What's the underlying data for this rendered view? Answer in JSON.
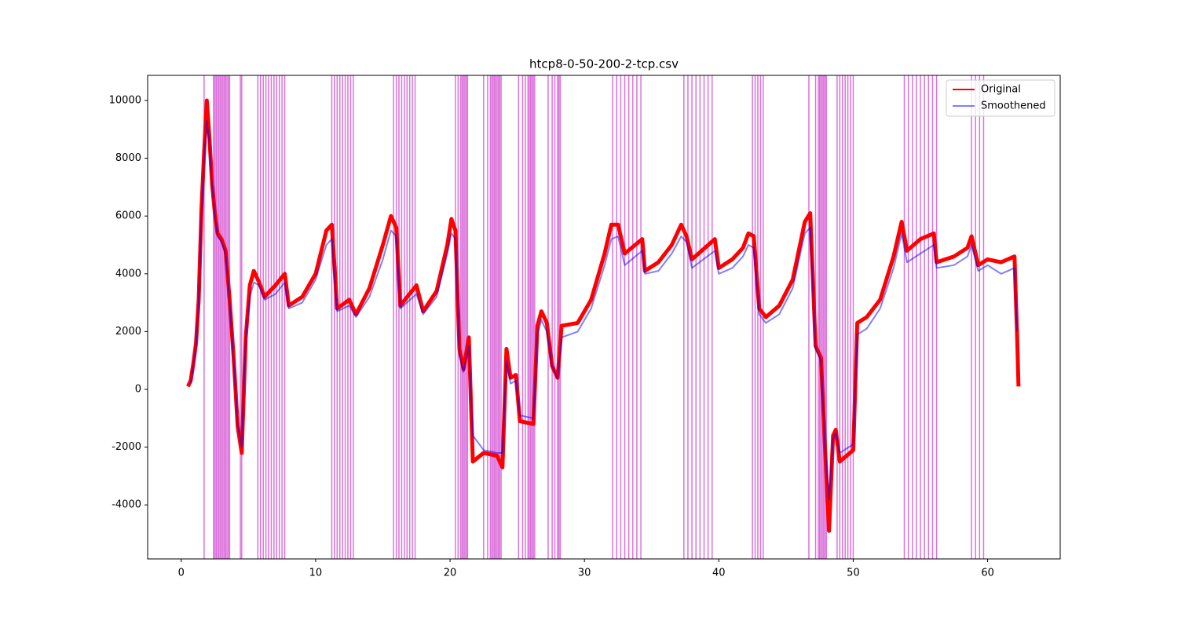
{
  "chart_data": {
    "type": "line",
    "title": "htcp8-0-50-200-2-tcp.csv",
    "xlim": [
      -2.5,
      65.4
    ],
    "ylim": [
      -5870,
      10870
    ],
    "xticks": [
      0,
      10,
      20,
      30,
      40,
      50,
      60
    ],
    "yticks": [
      -4000,
      -2000,
      0,
      2000,
      4000,
      6000,
      8000,
      10000
    ],
    "legend": "upper right",
    "vline_color": "#c000c0",
    "vlines": [
      1.7,
      2.4,
      2.5,
      2.6,
      2.7,
      2.8,
      2.9,
      3.0,
      3.1,
      3.2,
      3.3,
      3.4,
      3.5,
      3.6,
      4.4,
      4.5,
      5.7,
      5.9,
      6.1,
      6.3,
      6.5,
      6.7,
      6.9,
      7.1,
      7.3,
      7.5,
      7.7,
      11.2,
      11.4,
      11.6,
      11.8,
      12.0,
      12.2,
      12.4,
      12.6,
      12.8,
      15.8,
      16.0,
      16.2,
      16.4,
      16.6,
      16.8,
      17.0,
      17.2,
      17.4,
      20.4,
      20.6,
      20.8,
      20.9,
      21.0,
      21.1,
      21.2,
      21.3,
      22.5,
      22.8,
      23.0,
      23.1,
      23.2,
      23.3,
      23.4,
      23.5,
      23.6,
      23.7,
      23.8,
      25.1,
      25.4,
      25.6,
      25.8,
      25.9,
      26.0,
      26.1,
      26.2,
      26.3,
      27.3,
      27.6,
      27.8,
      28.0,
      28.1,
      28.2,
      32.1,
      32.4,
      32.7,
      33.0,
      33.3,
      33.6,
      33.9,
      34.2,
      37.4,
      37.7,
      38.0,
      38.3,
      38.6,
      38.9,
      39.2,
      39.5,
      42.5,
      42.7,
      42.9,
      43.1,
      43.3,
      46.7,
      47.2,
      47.4,
      47.5,
      47.6,
      47.7,
      47.8,
      47.9,
      48.0,
      48.8,
      49.0,
      49.2,
      49.4,
      49.6,
      49.8,
      50.0,
      53.8,
      54.1,
      54.4,
      54.7,
      55.0,
      55.3,
      55.6,
      55.9,
      56.2,
      58.8,
      59.1,
      59.4,
      59.7
    ],
    "series": [
      {
        "name": "Original",
        "color": "#ff0000",
        "x": [
          0.5,
          0.7,
          0.9,
          1.1,
          1.3,
          1.5,
          1.7,
          1.9,
          2.1,
          2.3,
          2.5,
          2.7,
          3.0,
          3.3,
          3.6,
          3.9,
          4.2,
          4.5,
          4.8,
          5.1,
          5.4,
          5.8,
          6.2,
          7.0,
          7.7,
          8.0,
          9.0,
          10.0,
          10.8,
          11.2,
          11.6,
          12.5,
          13.0,
          14.0,
          15.0,
          15.6,
          16.0,
          16.3,
          17.5,
          18.0,
          19.0,
          19.8,
          20.1,
          20.4,
          20.7,
          21.0,
          21.4,
          21.7,
          22.5,
          23.5,
          23.9,
          24.2,
          24.5,
          24.9,
          25.2,
          26.2,
          26.5,
          26.8,
          27.2,
          27.6,
          28.0,
          28.3,
          29.5,
          30.5,
          31.5,
          32.0,
          32.5,
          33.0,
          34.3,
          34.5,
          35.5,
          36.5,
          37.2,
          37.6,
          38.0,
          39.7,
          40.0,
          41.0,
          41.8,
          42.2,
          42.6,
          43.0,
          43.5,
          44.5,
          45.5,
          46.4,
          46.8,
          47.2,
          47.6,
          47.9,
          48.2,
          48.5,
          48.7,
          49.0,
          50.0,
          50.3,
          51.0,
          52.0,
          53.0,
          53.6,
          54.0,
          55.0,
          56.0,
          56.2,
          57.5,
          58.5,
          58.8,
          59.3,
          60.0,
          61.0,
          62.0,
          62.2,
          62.3
        ],
        "values": [
          100,
          300,
          900,
          1600,
          3100,
          6200,
          8200,
          10000,
          8700,
          7100,
          6100,
          5400,
          5200,
          4800,
          3100,
          1100,
          -1300,
          -2200,
          1800,
          3600,
          4100,
          3700,
          3200,
          3600,
          4000,
          2900,
          3200,
          4000,
          5500,
          5700,
          2800,
          3100,
          2600,
          3500,
          5000,
          6000,
          5600,
          2900,
          3600,
          2700,
          3400,
          5000,
          5900,
          5500,
          1400,
          700,
          1800,
          -2500,
          -2200,
          -2300,
          -2700,
          1400,
          400,
          500,
          -1100,
          -1200,
          2200,
          2700,
          2300,
          800,
          400,
          2200,
          2300,
          3100,
          4700,
          5700,
          5700,
          4700,
          5200,
          4100,
          4400,
          5000,
          5700,
          5300,
          4500,
          5200,
          4200,
          4500,
          4900,
          5400,
          5300,
          2800,
          2500,
          2900,
          3800,
          5800,
          6100,
          1500,
          1100,
          -2000,
          -4900,
          -1600,
          -1400,
          -2500,
          -2100,
          2300,
          2500,
          3100,
          4600,
          5800,
          4800,
          5200,
          5400,
          4400,
          4600,
          4900,
          5300,
          4300,
          4500,
          4400,
          4600,
          1800,
          100
        ]
      },
      {
        "name": "Smoothened",
        "color": "#0000ff",
        "x": [
          0.7,
          0.9,
          1.1,
          1.3,
          1.5,
          1.7,
          1.9,
          2.1,
          2.3,
          2.5,
          2.7,
          3.0,
          3.3,
          3.6,
          3.9,
          4.2,
          4.5,
          4.8,
          5.1,
          5.4,
          5.8,
          6.2,
          7.0,
          7.7,
          8.0,
          9.0,
          10.0,
          10.8,
          11.2,
          11.6,
          12.5,
          13.0,
          14.0,
          15.0,
          15.6,
          16.0,
          16.3,
          17.5,
          18.0,
          19.0,
          19.8,
          20.1,
          20.4,
          20.7,
          21.0,
          21.4,
          21.7,
          22.5,
          23.5,
          23.9,
          24.2,
          24.5,
          24.9,
          25.2,
          26.2,
          26.5,
          26.8,
          27.2,
          27.6,
          28.0,
          28.3,
          29.5,
          30.5,
          31.5,
          32.0,
          32.5,
          33.0,
          34.3,
          34.5,
          35.5,
          36.5,
          37.2,
          37.6,
          38.0,
          39.7,
          40.0,
          41.0,
          41.8,
          42.2,
          42.6,
          43.0,
          43.5,
          44.5,
          45.5,
          46.4,
          46.8,
          47.2,
          47.6,
          47.9,
          48.2,
          48.5,
          48.7,
          49.0,
          50.0,
          50.3,
          51.0,
          52.0,
          53.0,
          53.6,
          54.0,
          55.0,
          56.0,
          56.2,
          57.5,
          58.5,
          58.8,
          59.3,
          60.0,
          61.0,
          62.0,
          62.2
        ],
        "values": [
          200,
          800,
          1500,
          3000,
          6000,
          8000,
          9300,
          8500,
          7000,
          6000,
          5300,
          5100,
          4700,
          3000,
          1000,
          -1200,
          -2000,
          1800,
          3200,
          3700,
          3600,
          3100,
          3300,
          3700,
          2800,
          3000,
          3800,
          5000,
          5200,
          2700,
          2900,
          2500,
          3200,
          4500,
          5500,
          5300,
          2800,
          3300,
          2600,
          3200,
          4700,
          5400,
          5200,
          1200,
          600,
          1500,
          -1600,
          -2100,
          -2200,
          -2200,
          1000,
          200,
          300,
          -900,
          -1000,
          1900,
          2400,
          2000,
          800,
          400,
          1800,
          2000,
          2800,
          4300,
          5200,
          5300,
          4300,
          4800,
          4000,
          4100,
          4700,
          5300,
          5100,
          4200,
          4800,
          4000,
          4200,
          4600,
          5000,
          4900,
          2600,
          2300,
          2600,
          3500,
          5400,
          5600,
          1400,
          1000,
          -2000,
          -3800,
          -1700,
          -1500,
          -2200,
          -1900,
          1900,
          2100,
          2800,
          4200,
          5400,
          4400,
          4700,
          5000,
          4200,
          4300,
          4600,
          5000,
          4100,
          4300,
          4000,
          4200,
          2000
        ]
      }
    ]
  }
}
